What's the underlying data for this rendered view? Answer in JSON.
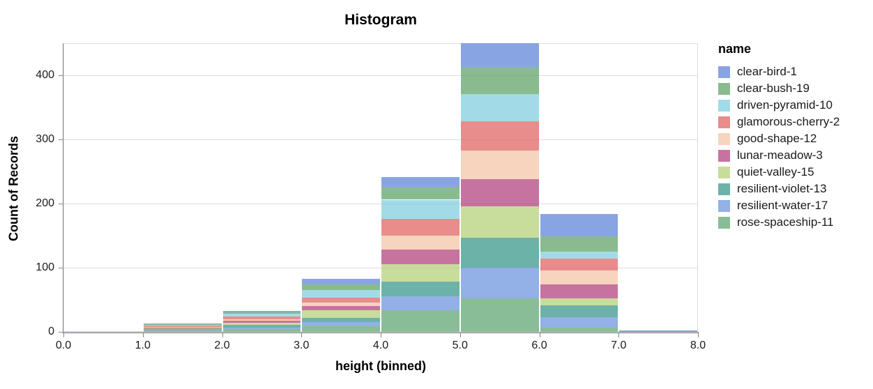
{
  "title": "Histogram",
  "legend": {
    "title": "name",
    "position": "right"
  },
  "axes": {
    "x": {
      "label": "height (binned)",
      "tick_labels": [
        "0.0",
        "1.0",
        "2.0",
        "3.0",
        "4.0",
        "5.0",
        "6.0",
        "7.0",
        "8.0"
      ]
    },
    "y": {
      "label": "Count of Records",
      "tick_labels": [
        "0",
        "100",
        "200",
        "300",
        "400"
      ],
      "tick_values": [
        0,
        100,
        200,
        300,
        400
      ]
    }
  },
  "colors": {
    "gridline": "#dddddd",
    "view_border": "#dddddd",
    "axis_domain": "#888888",
    "text": "#000000"
  },
  "chart_data": {
    "type": "bar",
    "stacked": true,
    "grid": true,
    "legend_position": "right",
    "title": "Histogram",
    "xlabel": "height (binned)",
    "ylabel": "Count of Records",
    "x_bin_edges": [
      0,
      1,
      2,
      3,
      4,
      5,
      6,
      7,
      8
    ],
    "xlim": [
      0,
      8
    ],
    "ylim": [
      0,
      450
    ],
    "y_ticks": [
      0,
      100,
      200,
      300,
      400
    ],
    "bar_opacity": 0.72,
    "series": [
      {
        "name": "clear-bird-1",
        "color": "#5c81d8",
        "values": [
          0,
          1,
          3,
          9,
          15,
          37,
          35,
          1
        ]
      },
      {
        "name": "clear-bush-19",
        "color": "#5ca163",
        "values": [
          0,
          1,
          2,
          9,
          20,
          42,
          24,
          0
        ]
      },
      {
        "name": "driven-pyramid-10",
        "color": "#7ecdde",
        "values": [
          0,
          1,
          4,
          12,
          30,
          43,
          11,
          0
        ]
      },
      {
        "name": "glamorous-cherry-2",
        "color": "#e15f60",
        "values": [
          0,
          2,
          4,
          7,
          26,
          45,
          18,
          0
        ]
      },
      {
        "name": "good-shape-12",
        "color": "#f2c3a4",
        "values": [
          0,
          1,
          3,
          6,
          22,
          45,
          22,
          0
        ]
      },
      {
        "name": "lunar-meadow-3",
        "color": "#b03d7c",
        "values": [
          0,
          1,
          3,
          6,
          23,
          42,
          22,
          1
        ]
      },
      {
        "name": "quiet-valley-15",
        "color": "#b3d074",
        "values": [
          1,
          1,
          3,
          12,
          27,
          49,
          11,
          0
        ]
      },
      {
        "name": "resilient-violet-13",
        "color": "#339488",
        "values": [
          0,
          2,
          4,
          7,
          23,
          47,
          18,
          0
        ]
      },
      {
        "name": "resilient-water-17",
        "color": "#6a91de",
        "values": [
          0,
          1,
          3,
          6,
          21,
          48,
          17,
          0
        ]
      },
      {
        "name": "rose-spaceship-11",
        "color": "#5ba46f",
        "values": [
          0,
          2,
          4,
          9,
          34,
          52,
          6,
          0
        ]
      }
    ],
    "bin_totals": [
      1,
      13,
      33,
      83,
      241,
      450,
      184,
      2
    ]
  }
}
